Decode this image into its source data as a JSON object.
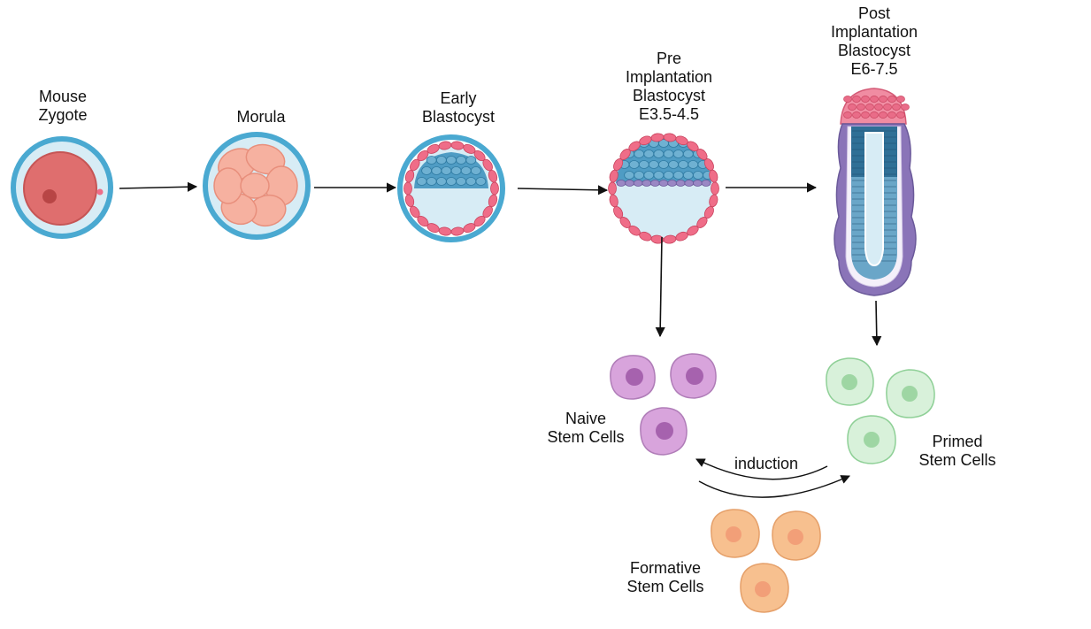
{
  "stages": {
    "zygote": {
      "lines": [
        "Mouse",
        "Zygote"
      ]
    },
    "morula": {
      "lines": [
        "Morula"
      ]
    },
    "early_blastocyst": {
      "lines": [
        "Early",
        "Blastocyst"
      ]
    },
    "pre_implantation": {
      "lines": [
        "Pre",
        "Implantation",
        "Blastocyst",
        "E3.5-4.5"
      ]
    },
    "post_implantation": {
      "lines": [
        "Post",
        "Implantation",
        "Blastocyst",
        "E6-7.5"
      ]
    }
  },
  "cells": {
    "naive": {
      "lines": [
        "Naive",
        "Stem Cells"
      ]
    },
    "primed": {
      "lines": [
        "Primed",
        "Stem Cells"
      ]
    },
    "formative": {
      "lines": [
        "Formative",
        "Stem Cells"
      ]
    }
  },
  "induction_label": "induction",
  "colors": {
    "zona": "#4aa9d1",
    "zona_inner": "#d7ecf5",
    "trophectoderm": "#ef6d88",
    "icm": "#4f9cc4",
    "primitive_endoderm": "#8a74b8",
    "morula": "#f6b1a0",
    "naive": "#d8a4dc",
    "primed": "#bfe6c2",
    "formative": "#f7c08f"
  }
}
